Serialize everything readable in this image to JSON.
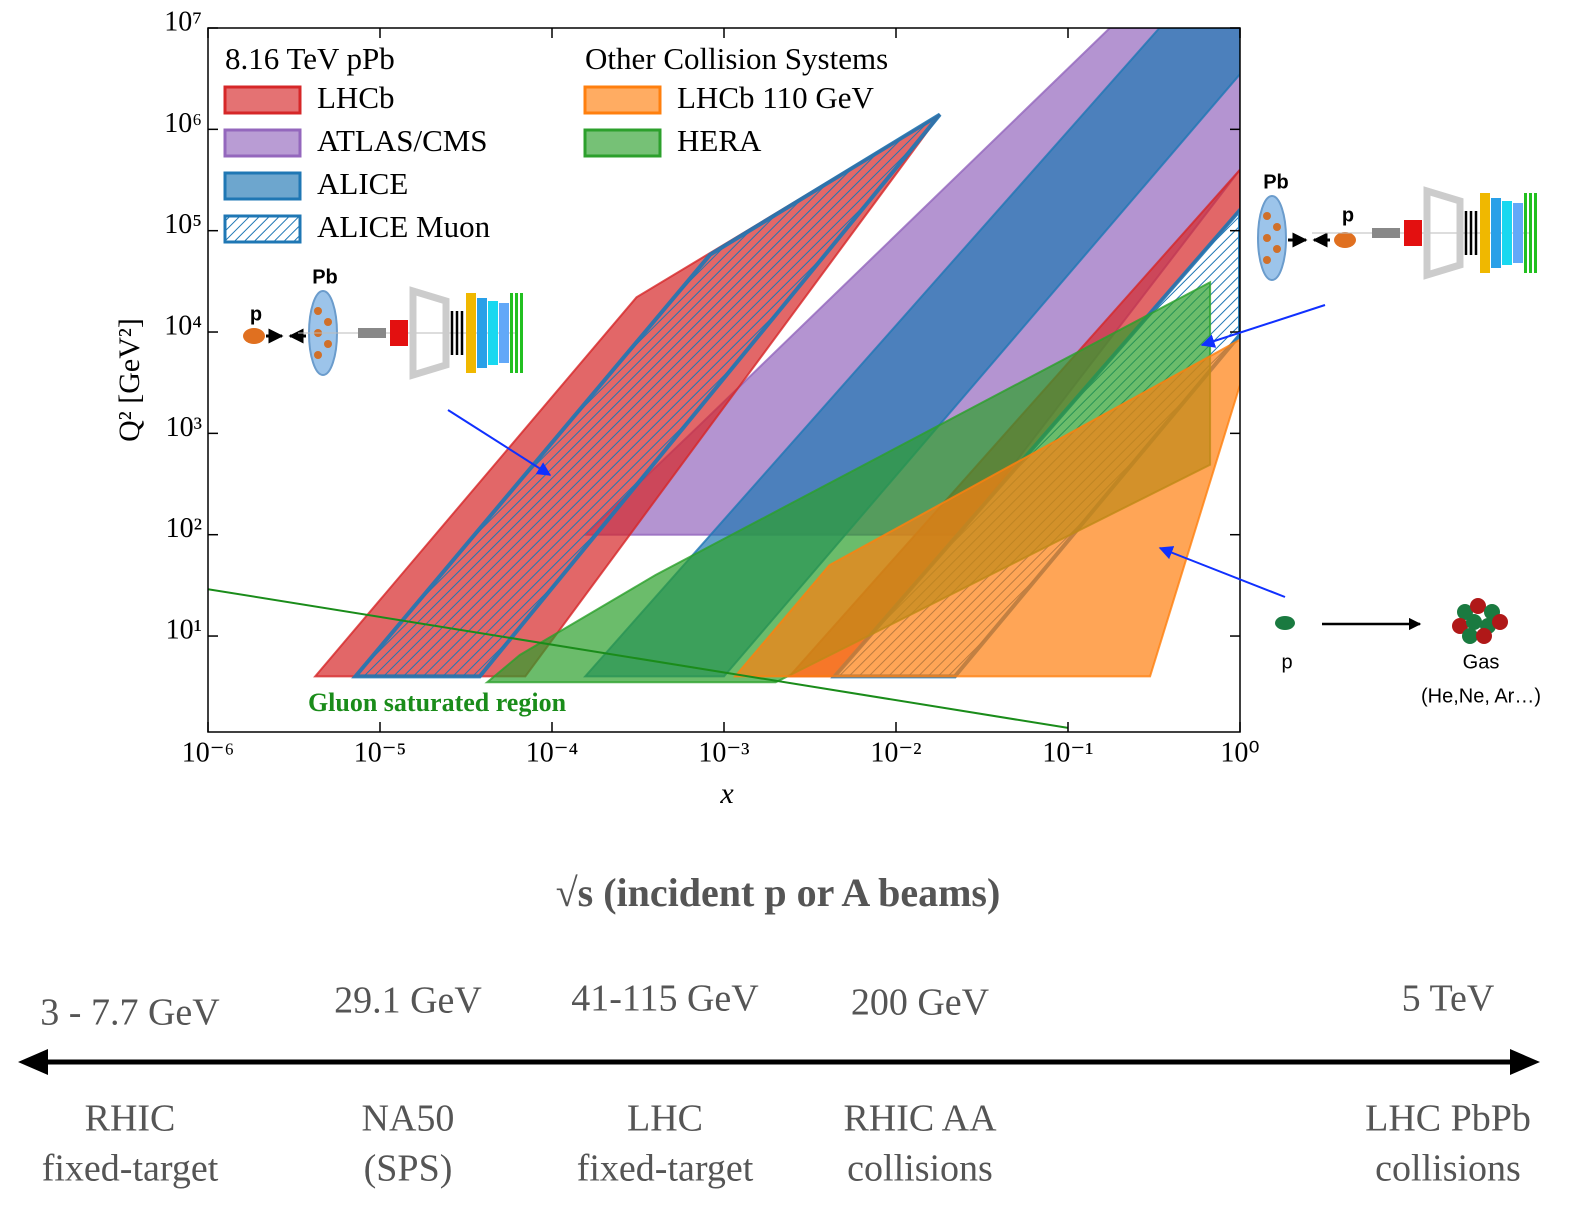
{
  "chart_data": {
    "type": "region",
    "xlabel": "x",
    "ylabel": "Q² [GeV²]",
    "xscale": "log",
    "yscale": "log",
    "xlim": [
      1e-06,
      1
    ],
    "ylim": [
      1.13,
      10000000
    ],
    "xticks": [
      {
        "value": 1e-06,
        "label": "10⁻⁶"
      },
      {
        "value": 1e-05,
        "label": "10⁻⁵"
      },
      {
        "value": 0.0001,
        "label": "10⁻⁴"
      },
      {
        "value": 0.001,
        "label": "10⁻³"
      },
      {
        "value": 0.01,
        "label": "10⁻²"
      },
      {
        "value": 0.1,
        "label": "10⁻¹"
      },
      {
        "value": 1,
        "label": "10⁰"
      }
    ],
    "yticks": [
      {
        "value": 10,
        "label": "10¹"
      },
      {
        "value": 100,
        "label": "10²"
      },
      {
        "value": 1000,
        "label": "10³"
      },
      {
        "value": 10000,
        "label": "10⁴"
      },
      {
        "value": 100000,
        "label": "10⁵"
      },
      {
        "value": 1000000,
        "label": "10⁶"
      },
      {
        "value": 10000000,
        "label": "10⁷"
      }
    ],
    "legend_loc": "upper left",
    "series_groups": [
      {
        "title": "8.16 TeV pPb",
        "series": [
          {
            "name": "LHCb",
            "color": "#d62728",
            "hatch": false,
            "polygons": [
              {
                "x": [
                  4.2e-06,
                  0.00031,
                  0.018,
                  7e-05
                ],
                "y": [
                  4,
                  22000,
                  1400000,
                  4
                ]
              },
              {
                "x": [
                  0.0024,
                  1,
                  1,
                  0.0044
                ],
                "y": [
                  4,
                  400000,
                  160000,
                  4
                ]
              }
            ]
          },
          {
            "name": "ATLAS/CMS",
            "color": "#9467bd",
            "hatch": false,
            "polygons": [
              {
                "x": [
                  0.000156,
                  0.00072,
                  0.175,
                  1,
                  1,
                  0.0235
                ],
                "y": [
                  100,
                  1200,
                  10000000,
                  10000000,
                  400000,
                  100
                ]
              }
            ]
          },
          {
            "name": "ALICE",
            "color": "#1f77b4",
            "hatch": false,
            "polygons": [
              {
                "x": [
                  0.000156,
                  0.34,
                  1,
                  1,
                  0.001
                ],
                "y": [
                  4,
                  10000000,
                  10000000,
                  3500000,
                  4
                ]
              }
            ]
          },
          {
            "name": "ALICE Muon",
            "color": "#1f77b4",
            "hatch": true,
            "polygons": [
              {
                "x": [
                  7.2e-06,
                  0.00083,
                  0.018,
                  3.8e-05
                ],
                "y": [
                  4,
                  58000,
                  1400000,
                  4
                ]
              },
              {
                "x": [
                  0.0044,
                  1,
                  1,
                  0.022
                ],
                "y": [
                  4,
                  160000,
                  9400,
                  4
                ]
              }
            ]
          }
        ]
      },
      {
        "title": "Other Collision Systems",
        "series": [
          {
            "name": "LHCb 110 GeV",
            "color": "#ff7f0e",
            "hatch": false,
            "polygons": [
              {
                "x": [
                  0.00116,
                  0.0041,
                  1,
                  1,
                  0.3
                ],
                "y": [
                  4,
                  50,
                  8400,
                  3000,
                  4
                ]
              }
            ]
          },
          {
            "name": "HERA",
            "color": "#2ca02c",
            "hatch": false,
            "polygons": [
              {
                "x": [
                  4.2e-05,
                  6.5e-05,
                  0.0004,
                  0.67,
                  0.67,
                  0.002
                ],
                "y": [
                  3.5,
                  6.5,
                  40,
                  31000,
                  490,
                  3.5
                ]
              }
            ]
          }
        ]
      }
    ],
    "boundary": {
      "label": "Gluon saturated region",
      "color": "#1a8c1a",
      "x": [
        1e-06,
        0.1
      ],
      "y": [
        29,
        1.24
      ]
    }
  },
  "diagrams": {
    "backward": {
      "beam": "p",
      "target": "Pb"
    },
    "forward": {
      "target": "Pb",
      "beam": "p"
    },
    "fixed_target": {
      "beam": "p",
      "target": "Gas",
      "gases": "(He,Ne, Ar…)"
    }
  },
  "energy_scale": {
    "title": "√s (incident p or A beams)",
    "points": [
      {
        "energy": "3 - 7.7 GeV",
        "facility": [
          "RHIC",
          "fixed-target"
        ]
      },
      {
        "energy": "29.1 GeV",
        "facility": [
          "NA50",
          "(SPS)"
        ]
      },
      {
        "energy": "41-115 GeV",
        "facility": [
          "LHC",
          "fixed-target"
        ]
      },
      {
        "energy": "200 GeV",
        "facility": [
          "RHIC AA",
          "collisions"
        ]
      },
      {
        "energy": "5 TeV",
        "facility": [
          "LHC PbPb",
          "collisions"
        ]
      }
    ]
  }
}
